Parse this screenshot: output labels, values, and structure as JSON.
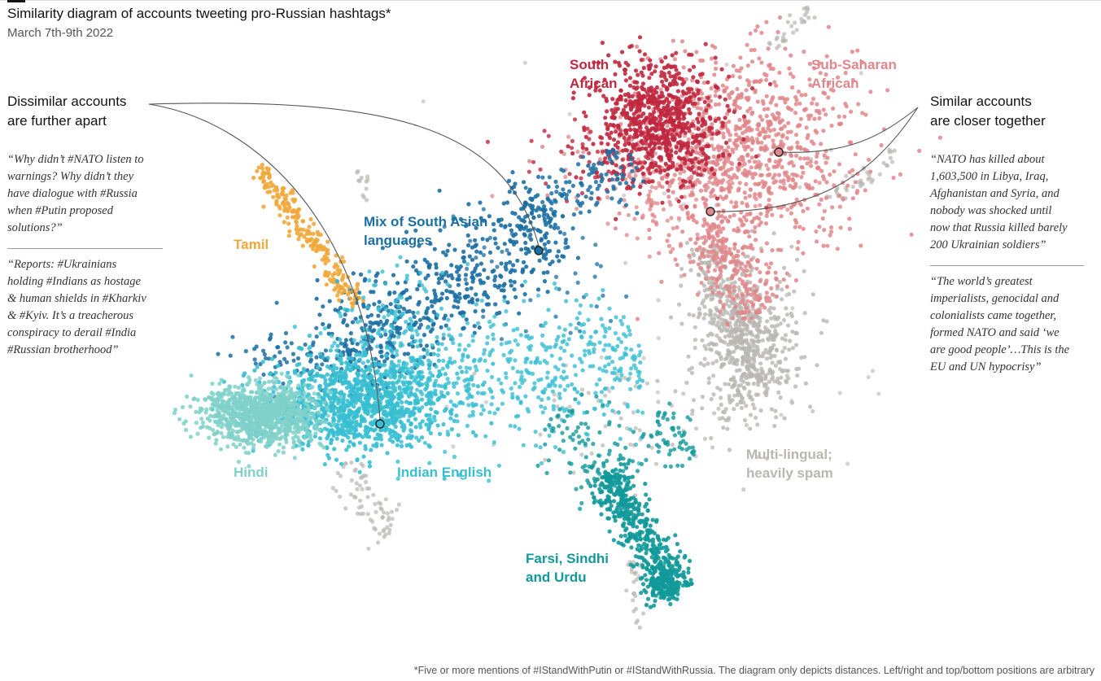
{
  "header": {
    "title": "Similarity diagram of accounts tweeting pro-Russian hashtags*",
    "subtitle": "March 7th-9th 2022"
  },
  "annotations": {
    "dissimilar": {
      "heading_line1": "Dissimilar accounts",
      "heading_line2": "are further apart",
      "quotes": [
        [
          "“Why didn’t #NATO listen to",
          "warnings? Why didn’t they",
          "have dialogue with #Russia",
          "when #Putin proposed",
          "solutions?”"
        ],
        [
          "“Reports: #Ukrainians",
          "holding #Indians as hostage",
          "& human shields in #Kharkiv",
          "& #Kyiv. It’s a treacherous",
          "conspiracy to derail #India",
          "#Russian brotherhood”"
        ]
      ]
    },
    "similar": {
      "heading_line1": "Similar accounts",
      "heading_line2": "are closer together",
      "quotes": [
        [
          "“NATO has killed about",
          "1,603,500 in Libya, Iraq,",
          "Afghanistan and Syria, and",
          "nobody was shocked until",
          "now that Russia killed barely",
          "200 Ukrainian soldiers”"
        ],
        [
          "“The world’s greatest",
          "imperialists, genocidal and",
          "colonialists came together,",
          "formed NATO and said ‘we",
          "are good people’…This is the",
          "EU and UN hypocrisy”"
        ]
      ]
    }
  },
  "chart_data": {
    "type": "scatter",
    "title": "Similarity diagram of accounts tweeting pro-Russian hashtags*",
    "subtitle": "March 7th-9th 2022",
    "axes": "none (positions only depict relative distances)",
    "clusters": [
      {
        "id": "south-african",
        "label": [
          "South",
          "African"
        ],
        "color": "#c0283f"
      },
      {
        "id": "sub-saharan",
        "label": [
          "Sub-Saharan",
          "African"
        ],
        "color": "#e0878b"
      },
      {
        "id": "tamil",
        "label": [
          "Tamil"
        ],
        "color": "#efa83b"
      },
      {
        "id": "south-asian-mix",
        "label": [
          "Mix of South Asian",
          "languages"
        ],
        "color": "#1b6fa3"
      },
      {
        "id": "hindi",
        "label": [
          "Hindi"
        ],
        "color": "#7fd1c9"
      },
      {
        "id": "indian-english",
        "label": [
          "Indian English"
        ],
        "color": "#38bfd2"
      },
      {
        "id": "farsi-sindhi-urdu",
        "label": [
          "Farsi, Sindhi",
          "and Urdu"
        ],
        "color": "#12999a"
      },
      {
        "id": "multilingual",
        "label": [
          "Multi-lingual;",
          "heavily spam"
        ],
        "color": "#b9b7b1"
      }
    ]
  },
  "footnote": "*Five or more mentions of #IStandWithPutin or #IStandWithRussia. The diagram only depicts distances. Left/right and top/bottom positions are arbitrary"
}
